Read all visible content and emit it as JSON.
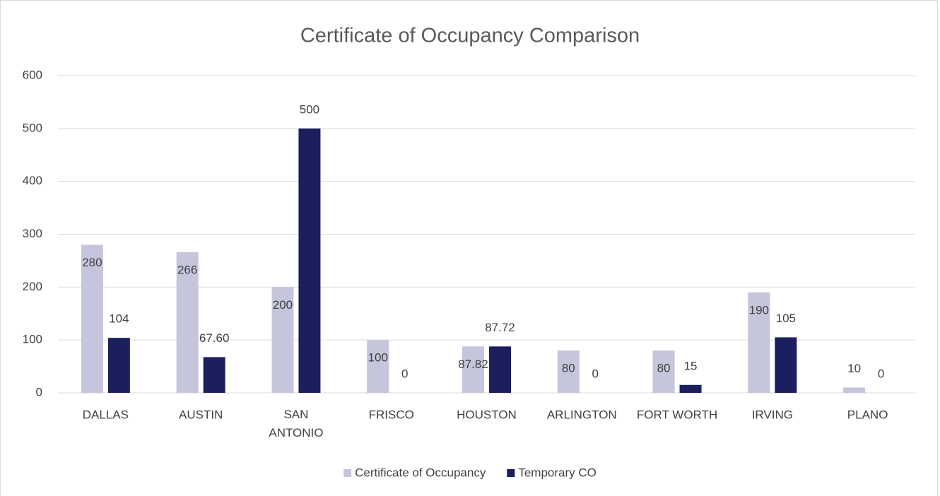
{
  "chart_data": {
    "type": "bar",
    "title": "Certificate of Occupancy Comparison",
    "categories": [
      "DALLAS",
      "AUSTIN",
      "SAN ANTONIO",
      "FRISCO",
      "HOUSTON",
      "ARLINGTON",
      "FORT WORTH",
      "IRVING",
      "PLANO"
    ],
    "series": [
      {
        "name": "Certificate of Occupancy",
        "color": "#c5c6dc",
        "values": [
          280,
          266,
          200,
          100,
          87.82,
          80,
          80,
          190,
          10
        ]
      },
      {
        "name": "Temporary CO",
        "color": "#1b1f5e",
        "values": [
          104,
          67.6,
          500,
          0,
          87.72,
          0,
          15,
          105,
          0
        ],
        "value_labels": [
          "104",
          "67.60",
          "500",
          "0",
          "87.72",
          "0",
          "15",
          "105",
          "0"
        ]
      }
    ],
    "ylim": [
      0,
      600
    ],
    "yticks": [
      0,
      100,
      200,
      300,
      400,
      500,
      600
    ],
    "grid": true,
    "legend": "bottom"
  }
}
